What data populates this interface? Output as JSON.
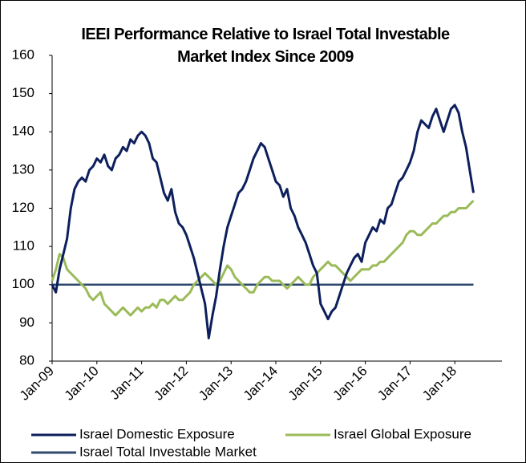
{
  "chart_data": {
    "type": "line",
    "title": "IEEI Performance Relative to Israel Total Investable Market Index Since 2009",
    "categories": [
      "Jan-09",
      null,
      null,
      null,
      null,
      null,
      null,
      null,
      null,
      null,
      null,
      null,
      "Jan-10",
      null,
      null,
      null,
      null,
      null,
      null,
      null,
      null,
      null,
      null,
      null,
      "Jan-11",
      null,
      null,
      null,
      null,
      null,
      null,
      null,
      null,
      null,
      null,
      null,
      "Jan-12",
      null,
      null,
      null,
      null,
      null,
      null,
      null,
      null,
      null,
      null,
      null,
      "Jan-13",
      null,
      null,
      null,
      null,
      null,
      null,
      null,
      null,
      null,
      null,
      null,
      "Jan-14",
      null,
      null,
      null,
      null,
      null,
      null,
      null,
      null,
      null,
      null,
      null,
      "Jan-15",
      null,
      null,
      null,
      null,
      null,
      null,
      null,
      null,
      null,
      null,
      null,
      "Jan-16",
      null,
      null,
      null,
      null,
      null,
      null,
      null,
      null,
      null,
      null,
      null,
      "Jan-17",
      null,
      null,
      null,
      null,
      null,
      null,
      null,
      null,
      null,
      null,
      null,
      "Jan-18",
      null,
      null,
      null,
      null,
      null
    ],
    "series": [
      {
        "name": "Israel Domestic Exposure",
        "color": "#0d1f5c",
        "values": [
          100,
          98,
          104,
          108,
          112,
          120,
          125,
          127,
          128,
          127,
          130,
          131,
          133,
          132,
          134,
          131,
          130,
          133,
          134,
          136,
          135,
          138,
          137,
          139,
          140,
          139,
          137,
          133,
          132,
          128,
          124,
          122,
          125,
          119,
          116,
          115,
          113,
          110,
          107,
          103,
          99,
          95,
          86,
          92,
          97,
          104,
          110,
          115,
          118,
          121,
          124,
          125,
          127,
          130,
          133,
          135,
          137,
          136,
          133,
          130,
          127,
          126,
          123,
          125,
          120,
          118,
          115,
          113,
          111,
          108,
          105,
          103,
          95,
          93,
          91,
          93,
          94,
          97,
          100,
          103,
          105,
          107,
          108,
          106,
          111,
          113,
          115,
          114,
          117,
          116,
          120,
          121,
          124,
          127,
          128,
          130,
          132,
          135,
          140,
          143,
          142,
          141,
          144,
          146,
          143,
          140,
          143,
          146,
          147,
          145,
          140,
          136,
          130,
          124
        ]
      },
      {
        "name": "Israel Global Exposure",
        "color": "#9bbb59",
        "values": [
          101,
          104,
          108,
          107,
          104,
          103,
          102,
          101,
          100,
          99,
          97,
          96,
          97,
          98,
          95,
          94,
          93,
          92,
          93,
          94,
          93,
          92,
          93,
          94,
          93,
          94,
          94,
          95,
          94,
          96,
          96,
          95,
          96,
          97,
          96,
          96,
          97,
          98,
          100,
          101,
          102,
          103,
          102,
          101,
          100,
          101,
          103,
          105,
          104,
          102,
          101,
          100,
          99,
          98,
          98,
          100,
          101,
          102,
          102,
          101,
          101,
          101,
          100,
          99,
          100,
          101,
          102,
          101,
          100,
          100,
          102,
          103,
          104,
          105,
          106,
          105,
          105,
          104,
          103,
          102,
          101,
          102,
          103,
          104,
          104,
          104,
          105,
          105,
          106,
          106,
          107,
          108,
          109,
          110,
          111,
          113,
          114,
          114,
          113,
          113,
          114,
          115,
          116,
          116,
          117,
          118,
          118,
          119,
          119,
          120,
          120,
          120,
          121,
          122
        ]
      },
      {
        "name": "Israel Total Investable Market",
        "color": "#2f4a6e",
        "values": [
          100,
          100,
          100,
          100,
          100,
          100,
          100,
          100,
          100,
          100,
          100,
          100,
          100,
          100,
          100,
          100,
          100,
          100,
          100,
          100,
          100,
          100,
          100,
          100,
          100,
          100,
          100,
          100,
          100,
          100,
          100,
          100,
          100,
          100,
          100,
          100,
          100,
          100,
          100,
          100,
          100,
          100,
          100,
          100,
          100,
          100,
          100,
          100,
          100,
          100,
          100,
          100,
          100,
          100,
          100,
          100,
          100,
          100,
          100,
          100,
          100,
          100,
          100,
          100,
          100,
          100,
          100,
          100,
          100,
          100,
          100,
          100,
          100,
          100,
          100,
          100,
          100,
          100,
          100,
          100,
          100,
          100,
          100,
          100,
          100,
          100,
          100,
          100,
          100,
          100,
          100,
          100,
          100,
          100,
          100,
          100,
          100,
          100,
          100,
          100,
          100,
          100,
          100,
          100,
          100,
          100,
          100,
          100,
          100,
          100,
          100,
          100,
          100,
          100
        ]
      }
    ],
    "ylim": [
      80,
      160
    ],
    "yticks": [
      80,
      90,
      100,
      110,
      120,
      130,
      140,
      150,
      160
    ]
  }
}
